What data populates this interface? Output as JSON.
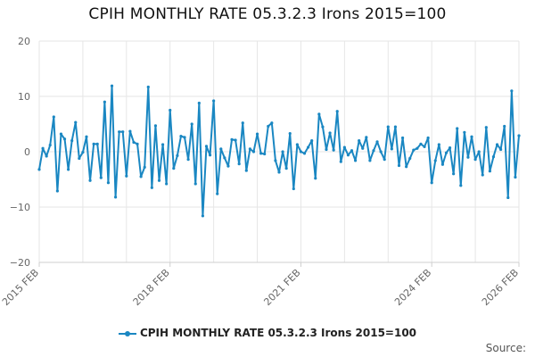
{
  "colors": {
    "series": "#1a87c2",
    "grid": "#e6e6e6",
    "axis_line": "#cfcfcf"
  },
  "source_label": "Source:",
  "chart_data": {
    "type": "line",
    "title": "CPIH MONTHLY RATE 05.3.2.3 Irons 2015=100",
    "xlabel": "",
    "ylabel": "",
    "ylim": [
      -20,
      20
    ],
    "y_ticks": [
      "20",
      "10",
      "0",
      "−10",
      "−20"
    ],
    "y_tick_values": [
      20,
      10,
      0,
      -10,
      -20
    ],
    "x_tick_labels": [
      "2015 FEB",
      "2018 FEB",
      "2021 FEB",
      "2024 FEB",
      "2026 FEB"
    ],
    "x_tick_index": [
      0,
      36,
      72,
      108,
      132
    ],
    "grid": true,
    "legend_position": "bottom",
    "series": [
      {
        "name": "CPIH MONTHLY RATE 05.3.2.3 Irons 2015=100",
        "x_start": "2015-02",
        "x_end": "2026-02",
        "frequency": "monthly",
        "values": [
          -3.2,
          0.6,
          -0.8,
          1.2,
          6.3,
          -7.1,
          3.2,
          2.3,
          -3.2,
          2.0,
          5.3,
          -1.2,
          -0.1,
          2.7,
          -5.2,
          1.4,
          1.4,
          -4.7,
          9.0,
          -5.6,
          11.9,
          -8.2,
          3.6,
          3.6,
          -4.4,
          3.7,
          1.7,
          1.4,
          -4.5,
          -2.8,
          11.7,
          -6.5,
          4.7,
          -5.2,
          1.3,
          -5.8,
          7.5,
          -3.0,
          -0.7,
          2.8,
          2.6,
          -1.4,
          5.0,
          -5.8,
          8.8,
          -11.6,
          1.0,
          -0.6,
          9.2,
          -7.6,
          0.5,
          -1.1,
          -2.6,
          2.2,
          2.1,
          -2.2,
          5.2,
          -3.4,
          0.5,
          0.0,
          3.2,
          -0.3,
          -0.4,
          4.6,
          5.2,
          -1.6,
          -3.7,
          0.0,
          -3.0,
          3.3,
          -6.7,
          1.3,
          0.0,
          -0.3,
          0.8,
          2.0,
          -4.8,
          6.8,
          4.5,
          0.4,
          3.4,
          0.3,
          7.3,
          -1.8,
          0.8,
          -0.6,
          0.2,
          -1.6,
          2.0,
          0.6,
          2.6,
          -1.6,
          0.2,
          1.8,
          0.0,
          -1.4,
          4.5,
          0.5,
          4.5,
          -2.5,
          2.5,
          -2.7,
          -1.2,
          0.3,
          0.6,
          1.4,
          0.9,
          2.5,
          -5.6,
          -1.6,
          1.3,
          -2.3,
          -0.2,
          0.7,
          -4.0,
          4.2,
          -6.1,
          3.5,
          -1.0,
          2.7,
          -1.4,
          0.0,
          -4.2,
          4.4,
          -3.5,
          -0.9,
          1.3,
          0.4,
          4.6,
          -8.3,
          11.0,
          -4.6,
          2.9
        ]
      }
    ]
  }
}
